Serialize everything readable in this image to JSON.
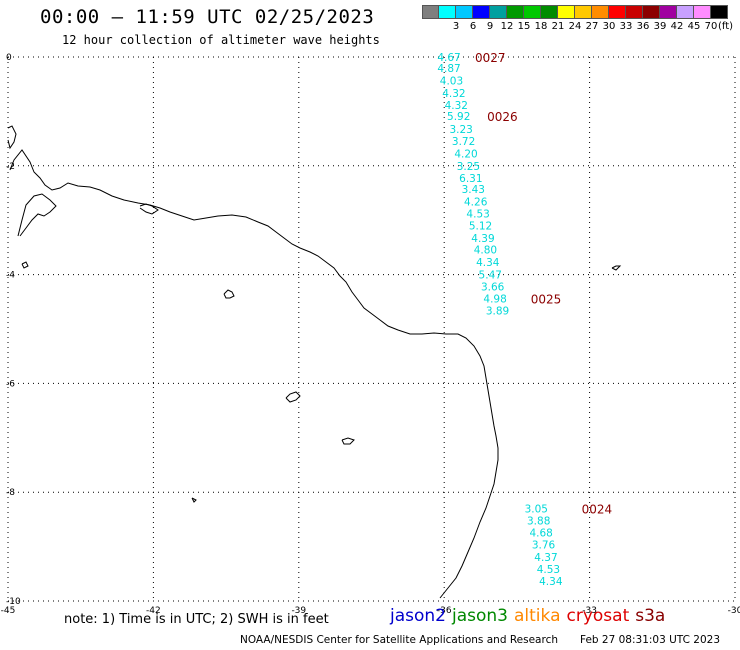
{
  "header": {
    "title": "00:00 – 11:59 UTC 02/25/2023",
    "subtitle": "12 hour collection of altimeter wave heights"
  },
  "scale": {
    "unit": "(ft)",
    "bins": [
      {
        "label": "",
        "color": "#7f7f7f"
      },
      {
        "label": "3",
        "color": "#00ffff"
      },
      {
        "label": "6",
        "color": "#00c8ff"
      },
      {
        "label": "9",
        "color": "#0000ff"
      },
      {
        "label": "12",
        "color": "#00a0a0"
      },
      {
        "label": "15",
        "color": "#009a00"
      },
      {
        "label": "18",
        "color": "#00c800"
      },
      {
        "label": "21",
        "color": "#008c00"
      },
      {
        "label": "24",
        "color": "#ffff00"
      },
      {
        "label": "27",
        "color": "#ffc800"
      },
      {
        "label": "30",
        "color": "#ff8c00"
      },
      {
        "label": "33",
        "color": "#ff0000"
      },
      {
        "label": "36",
        "color": "#c80000"
      },
      {
        "label": "39",
        "color": "#8c0000"
      },
      {
        "label": "42",
        "color": "#a000a0"
      },
      {
        "label": "45",
        "color": "#c8a0ff"
      },
      {
        "label": "70",
        "color": "#ff8cff"
      },
      {
        "label": "",
        "color": "#000000"
      }
    ]
  },
  "map": {
    "lon_range": [
      -45,
      -30
    ],
    "lat_range": [
      -10,
      0
    ],
    "lon_ticks": [
      "-45",
      "-42",
      "-39",
      "-36",
      "-33",
      "-30"
    ],
    "lat_ticks": [
      "0",
      "-2",
      "-4",
      "-6",
      "-8",
      "-10"
    ],
    "track_color": "#00d8d8",
    "time_label_color": "#8b0000",
    "tracks": [
      {
        "time_label": "0027",
        "start_lat": 0.0,
        "points": [
          {
            "lon": -35.9,
            "lat": 0.0,
            "swh": "4.67"
          },
          {
            "lon": -35.9,
            "lat": -0.2,
            "swh": "4.87"
          },
          {
            "lon": -35.85,
            "lat": -0.43,
            "swh": "4.03"
          },
          {
            "lon": -35.8,
            "lat": -0.66,
            "swh": "4.32"
          },
          {
            "lon": -35.75,
            "lat": -0.88,
            "swh": "4.32"
          },
          {
            "lon": -35.7,
            "lat": -1.08,
            "swh": "5.92"
          },
          {
            "lon": -35.65,
            "lat": -1.32,
            "swh": "3.23"
          },
          {
            "lon": -35.6,
            "lat": -1.54,
            "swh": "3.72"
          },
          {
            "lon": -35.55,
            "lat": -1.77,
            "swh": "4.20"
          },
          {
            "lon": -35.5,
            "lat": -2.0,
            "swh": "3.25"
          },
          {
            "lon": -35.45,
            "lat": -2.22,
            "swh": "6.31"
          },
          {
            "lon": -35.4,
            "lat": -2.43,
            "swh": "3.43"
          },
          {
            "lon": -35.35,
            "lat": -2.66,
            "swh": "4.26"
          },
          {
            "lon": -35.3,
            "lat": -2.88,
            "swh": "4.53"
          },
          {
            "lon": -35.25,
            "lat": -3.1,
            "swh": "5.12"
          },
          {
            "lon": -35.2,
            "lat": -3.33,
            "swh": "4.39"
          },
          {
            "lon": -35.15,
            "lat": -3.54,
            "swh": "4.80"
          },
          {
            "lon": -35.1,
            "lat": -3.77,
            "swh": "4.34"
          },
          {
            "lon": -35.05,
            "lat": -4.0,
            "swh": "5.47"
          },
          {
            "lon": -35.0,
            "lat": -4.22,
            "swh": "3.66"
          },
          {
            "lon": -34.95,
            "lat": -4.44,
            "swh": "4.98"
          },
          {
            "lon": -34.9,
            "lat": -4.66,
            "swh": "3.89"
          }
        ]
      },
      {
        "time_label": "0024",
        "points": [
          {
            "lon": -34.1,
            "lat": -8.3,
            "swh": "3.05"
          },
          {
            "lon": -34.05,
            "lat": -8.52,
            "swh": "3.88"
          },
          {
            "lon": -34.0,
            "lat": -8.74,
            "swh": "4.68"
          },
          {
            "lon": -33.95,
            "lat": -8.96,
            "swh": "3.76"
          },
          {
            "lon": -33.9,
            "lat": -9.19,
            "swh": "4.37"
          },
          {
            "lon": -33.85,
            "lat": -9.41,
            "swh": "4.53"
          },
          {
            "lon": -33.8,
            "lat": -9.63,
            "swh": "4.34"
          }
        ]
      }
    ],
    "time_labels": [
      {
        "text": "0027",
        "lon": -35.05,
        "lat": 0.0
      },
      {
        "text": "0026",
        "lon": -34.8,
        "lat": -1.08
      },
      {
        "text": "0025",
        "lon": -33.9,
        "lat": -4.44
      },
      {
        "text": "0024",
        "lon": -32.85,
        "lat": -8.3
      }
    ]
  },
  "footer": {
    "note": "note: 1) Time is in UTC; 2) SWH is in feet",
    "satellites": [
      {
        "name": "jason2",
        "color": "#0000cc"
      },
      {
        "name": "jason3",
        "color": "#008800"
      },
      {
        "name": "altika",
        "color": "#ff8800"
      },
      {
        "name": "cryosat",
        "color": "#dd0000"
      },
      {
        "name": "s3a",
        "color": "#880000"
      }
    ],
    "credit": "NOAA/NESDIS Center for Satellite Applications and Research",
    "timestamp": "Feb 27 08:31:03 UTC 2023"
  }
}
